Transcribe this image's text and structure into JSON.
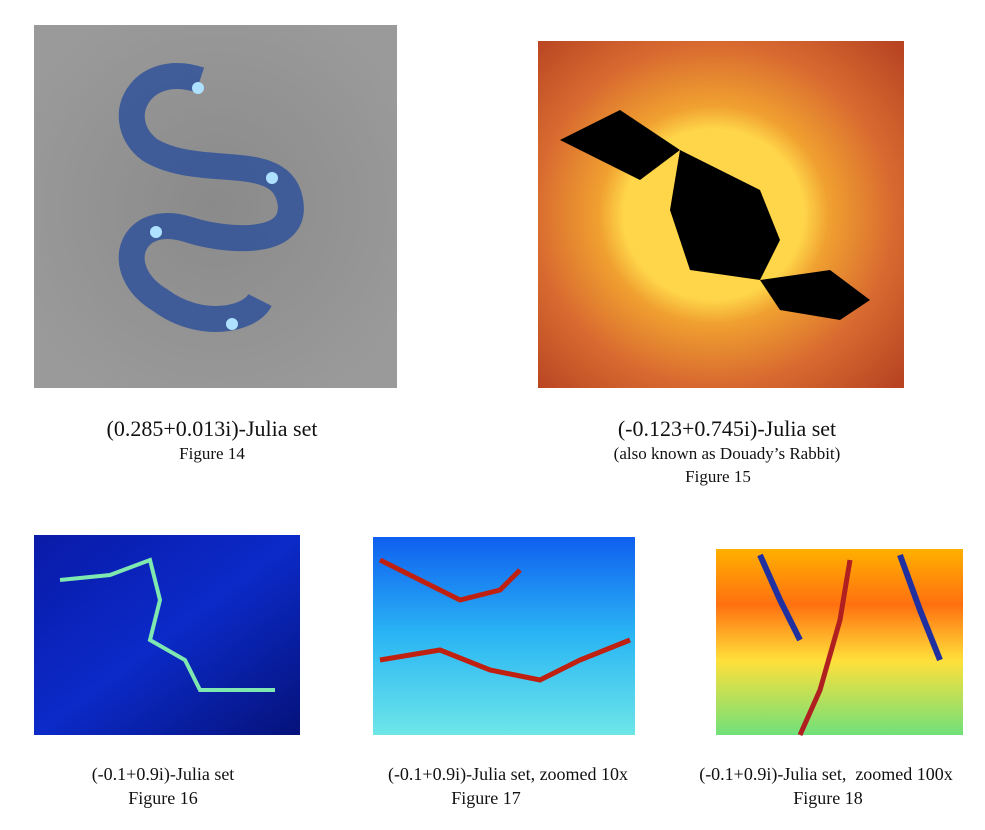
{
  "figures": [
    {
      "caption": "(0.285+0.013i)-Julia set",
      "label": "Figure 14"
    },
    {
      "caption": "(-0.123+0.745i)-Julia set",
      "note": "(also known as Douady’s Rabbit)",
      "label": "Figure 15"
    },
    {
      "caption": "(-0.1+0.9i)-Julia set",
      "label": "Figure 16"
    },
    {
      "caption": "(-0.1+0.9i)-Julia set, zoomed 10x",
      "label": "Figure 17"
    },
    {
      "caption": "(-0.1+0.9i)-Julia set,  zoomed 100x",
      "label": "Figure 18"
    }
  ]
}
